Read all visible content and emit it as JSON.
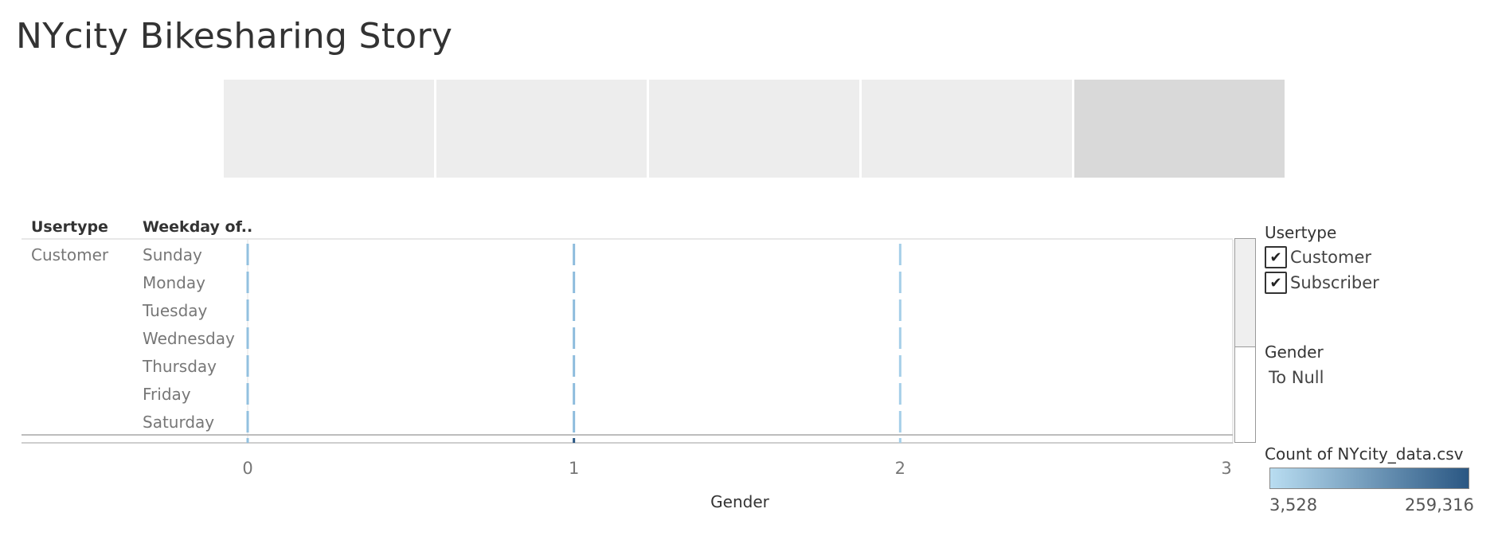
{
  "page": {
    "title": "NYcity Bikesharing Story"
  },
  "story_points": [
    {
      "active": false
    },
    {
      "active": false
    },
    {
      "active": false
    },
    {
      "active": false
    },
    {
      "active": true
    }
  ],
  "table": {
    "col_header_usertype": "Usertype",
    "col_header_weekday": "Weekday of..",
    "usertype_label": "Customer",
    "weekdays": [
      "Sunday",
      "Monday",
      "Tuesday",
      "Wednesday",
      "Thursday",
      "Friday",
      "Saturday"
    ]
  },
  "chart_data": {
    "type": "table",
    "xlabel": "Gender",
    "xlim": [
      0,
      3
    ],
    "x_ticks": [
      "0",
      "1",
      "2",
      "3"
    ],
    "rows": [
      {
        "usertype": "Customer",
        "weekday": "Sunday",
        "genders": [
          0,
          1,
          2
        ]
      },
      {
        "usertype": "Customer",
        "weekday": "Monday",
        "genders": [
          0,
          1,
          2
        ]
      },
      {
        "usertype": "Customer",
        "weekday": "Tuesday",
        "genders": [
          0,
          1,
          2
        ]
      },
      {
        "usertype": "Customer",
        "weekday": "Wednesday",
        "genders": [
          0,
          1,
          2
        ]
      },
      {
        "usertype": "Customer",
        "weekday": "Thursday",
        "genders": [
          0,
          1,
          2
        ]
      },
      {
        "usertype": "Customer",
        "weekday": "Friday",
        "genders": [
          0,
          1,
          2
        ]
      },
      {
        "usertype": "Customer",
        "weekday": "Saturday",
        "genders": [
          0,
          1,
          2
        ]
      }
    ],
    "color_measure": "Count of NYcity_data.csv",
    "color_range": [
      3528,
      259316
    ],
    "mark_colors": {
      "0": "#93c1df",
      "1": "#8ebcdd",
      "2": "#a6cfe9"
    }
  },
  "legend": {
    "usertype_title": "Usertype",
    "usertype_items": [
      {
        "label": "Customer",
        "checked": true
      },
      {
        "label": "Subscriber",
        "checked": true
      }
    ],
    "gender_title": "Gender",
    "gender_value": "To Null",
    "color_title": "Count of NYcity_data.csv",
    "color_min_label": "3,528",
    "color_max_label": "259,316",
    "ramp_start_color": "#b9ddf1",
    "ramp_end_color": "#2a5783",
    "check_glyph": "✔"
  }
}
